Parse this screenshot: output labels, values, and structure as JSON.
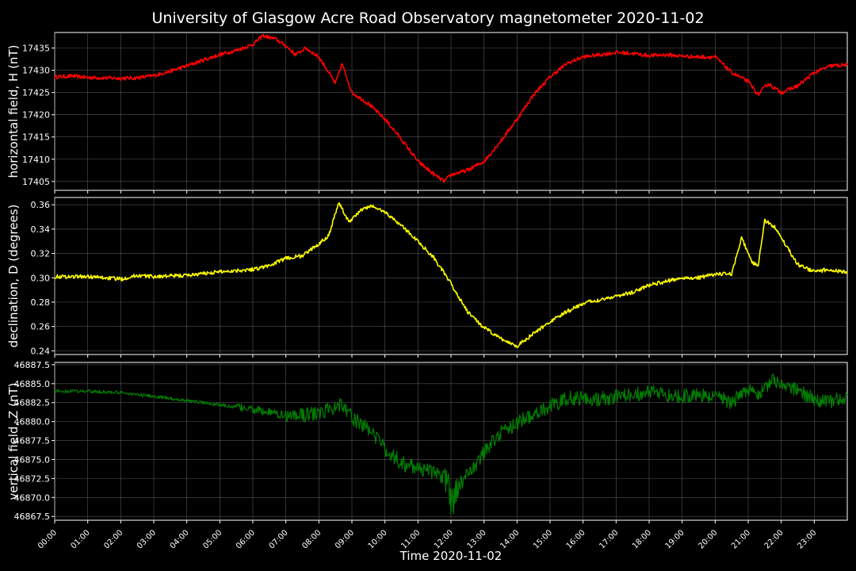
{
  "chart_data": {
    "type": "line",
    "title": "University of Glasgow Acre Road Observatory magnetometer 2020-11-02",
    "xlabel": "Time 2020-11-02",
    "x_ticks": [
      "00:00",
      "01:00",
      "02:00",
      "03:00",
      "04:00",
      "05:00",
      "06:00",
      "07:00",
      "08:00",
      "09:00",
      "10:00",
      "11:00",
      "12:00",
      "13:00",
      "14:00",
      "15:00",
      "16:00",
      "17:00",
      "18:00",
      "19:00",
      "20:00",
      "21:00",
      "22:00",
      "23:00"
    ],
    "xlim_hours": [
      0,
      24
    ],
    "grid": true,
    "panels": [
      {
        "ylabel": "horizontal field, H (nT)",
        "color": "#ff0000",
        "ylim": [
          17403,
          17438.5
        ],
        "yticks": [
          17405,
          17410,
          17415,
          17420,
          17425,
          17430,
          17435
        ],
        "ytick_labels": [
          "17405",
          "17410",
          "17415",
          "17420",
          "17425",
          "17430",
          "17435"
        ],
        "series": [
          {
            "values_at_hours": [
              [
                0,
                17428.5
              ],
              [
                0.5,
                17428.7
              ],
              [
                1,
                17428.4
              ],
              [
                1.5,
                17428.3
              ],
              [
                2,
                17428.2
              ],
              [
                2.5,
                17428.3
              ],
              [
                3,
                17428.8
              ],
              [
                3.5,
                17429.8
              ],
              [
                4,
                17431.0
              ],
              [
                4.5,
                17432.3
              ],
              [
                5,
                17433.5
              ],
              [
                5.5,
                17434.5
              ],
              [
                6,
                17435.8
              ],
              [
                6.3,
                17437.8
              ],
              [
                6.7,
                17437.0
              ],
              [
                7.0,
                17435.5
              ],
              [
                7.3,
                17433.5
              ],
              [
                7.6,
                17435.0
              ],
              [
                8.0,
                17433.0
              ],
              [
                8.3,
                17429.5
              ],
              [
                8.5,
                17427.0
              ],
              [
                8.7,
                17431.5
              ],
              [
                9.0,
                17425.0
              ],
              [
                9.5,
                17422.5
              ],
              [
                10,
                17419.0
              ],
              [
                10.5,
                17414.5
              ],
              [
                11,
                17409.5
              ],
              [
                11.5,
                17406.5
              ],
              [
                11.8,
                17405.0
              ],
              [
                12,
                17406.5
              ],
              [
                12.5,
                17407.5
              ],
              [
                13,
                17409.5
              ],
              [
                13.5,
                17414.0
              ],
              [
                14,
                17419.0
              ],
              [
                14.5,
                17424.5
              ],
              [
                15,
                17428.5
              ],
              [
                15.5,
                17431.5
              ],
              [
                16,
                17433.0
              ],
              [
                16.5,
                17433.5
              ],
              [
                17,
                17434.0
              ],
              [
                17.5,
                17433.8
              ],
              [
                18,
                17433.3
              ],
              [
                18.5,
                17433.5
              ],
              [
                19,
                17433.2
              ],
              [
                19.5,
                17433.0
              ],
              [
                20,
                17433.0
              ],
              [
                20.5,
                17429.5
              ],
              [
                21,
                17427.5
              ],
              [
                21.3,
                17424.5
              ],
              [
                21.6,
                17427.0
              ],
              [
                22,
                17425.0
              ],
              [
                22.5,
                17426.5
              ],
              [
                23,
                17429.5
              ],
              [
                23.5,
                17431.0
              ],
              [
                24,
                17431.2
              ]
            ]
          }
        ]
      },
      {
        "ylabel": "declination, D (degrees)",
        "color": "#ffff00",
        "ylim": [
          0.237,
          0.366
        ],
        "yticks": [
          0.24,
          0.26,
          0.28,
          0.3,
          0.32,
          0.34,
          0.36
        ],
        "ytick_labels": [
          "0.24",
          "0.26",
          "0.28",
          "0.30",
          "0.32",
          "0.34",
          "0.36"
        ],
        "series": [
          {
            "values_at_hours": [
              [
                0,
                0.301
              ],
              [
                1,
                0.301
              ],
              [
                1.5,
                0.3
              ],
              [
                2,
                0.299
              ],
              [
                2.5,
                0.302
              ],
              [
                3,
                0.301
              ],
              [
                4,
                0.302
              ],
              [
                5,
                0.305
              ],
              [
                6,
                0.307
              ],
              [
                6.5,
                0.31
              ],
              [
                7,
                0.316
              ],
              [
                7.5,
                0.318
              ],
              [
                8,
                0.328
              ],
              [
                8.3,
                0.335
              ],
              [
                8.6,
                0.362
              ],
              [
                8.9,
                0.346
              ],
              [
                9.3,
                0.356
              ],
              [
                9.6,
                0.359
              ],
              [
                10,
                0.354
              ],
              [
                10.5,
                0.343
              ],
              [
                11,
                0.33
              ],
              [
                11.5,
                0.316
              ],
              [
                12,
                0.295
              ],
              [
                12.5,
                0.272
              ],
              [
                13,
                0.259
              ],
              [
                13.5,
                0.25
              ],
              [
                14,
                0.244
              ],
              [
                14.5,
                0.254
              ],
              [
                15,
                0.264
              ],
              [
                15.5,
                0.272
              ],
              [
                16,
                0.279
              ],
              [
                16.5,
                0.282
              ],
              [
                17,
                0.285
              ],
              [
                17.5,
                0.288
              ],
              [
                18,
                0.294
              ],
              [
                18.5,
                0.297
              ],
              [
                19,
                0.3
              ],
              [
                19.5,
                0.3
              ],
              [
                20,
                0.303
              ],
              [
                20.5,
                0.303
              ],
              [
                20.8,
                0.333
              ],
              [
                21.1,
                0.313
              ],
              [
                21.3,
                0.31
              ],
              [
                21.5,
                0.347
              ],
              [
                21.8,
                0.342
              ],
              [
                22,
                0.333
              ],
              [
                22.5,
                0.311
              ],
              [
                23,
                0.305
              ],
              [
                23.5,
                0.307
              ],
              [
                24,
                0.304
              ]
            ]
          }
        ]
      },
      {
        "ylabel": "vertical field, Z (nT)",
        "color": "#008000",
        "ylim": [
          46867.0,
          46887.8
        ],
        "yticks": [
          46867.5,
          46870.0,
          46872.5,
          46875.0,
          46877.5,
          46880.0,
          46882.5,
          46885.0,
          46887.5
        ],
        "ytick_labels": [
          "46867.5",
          "46870.0",
          "46872.5",
          "46875.0",
          "46877.5",
          "46880.0",
          "46882.5",
          "46885.0",
          "46887.5"
        ],
        "series": [
          {
            "noise_nT": 0.9,
            "values_at_hours": [
              [
                0,
                46884.0
              ],
              [
                1,
                46884.0
              ],
              [
                2,
                46883.8
              ],
              [
                3,
                46883.3
              ],
              [
                4,
                46882.8
              ],
              [
                5,
                46882.2
              ],
              [
                6,
                46881.6
              ],
              [
                7,
                46880.8
              ],
              [
                8,
                46881.0
              ],
              [
                8.7,
                46882.5
              ],
              [
                9,
                46880.5
              ],
              [
                9.5,
                46879.0
              ],
              [
                10,
                46876.5
              ],
              [
                10.5,
                46874.5
              ],
              [
                11,
                46873.8
              ],
              [
                11.5,
                46873.3
              ],
              [
                11.9,
                46872.5
              ],
              [
                12,
                46869.0
              ],
              [
                12.3,
                46872.0
              ],
              [
                12.6,
                46873.5
              ],
              [
                13,
                46876.0
              ],
              [
                13.5,
                46878.5
              ],
              [
                14,
                46879.8
              ],
              [
                14.5,
                46881.0
              ],
              [
                15,
                46882.0
              ],
              [
                15.5,
                46883.0
              ],
              [
                16,
                46883.2
              ],
              [
                16.5,
                46883.0
              ],
              [
                17,
                46883.2
              ],
              [
                17.5,
                46883.5
              ],
              [
                18,
                46883.8
              ],
              [
                18.5,
                46883.6
              ],
              [
                19,
                46883.4
              ],
              [
                19.5,
                46883.4
              ],
              [
                20,
                46883.2
              ],
              [
                20.5,
                46882.6
              ],
              [
                21,
                46884.5
              ],
              [
                21.3,
                46883.5
              ],
              [
                21.7,
                46885.5
              ],
              [
                22,
                46885.0
              ],
              [
                22.5,
                46884.0
              ],
              [
                23,
                46883.0
              ],
              [
                23.5,
                46882.5
              ],
              [
                24,
                46883.5
              ]
            ]
          }
        ]
      }
    ]
  }
}
